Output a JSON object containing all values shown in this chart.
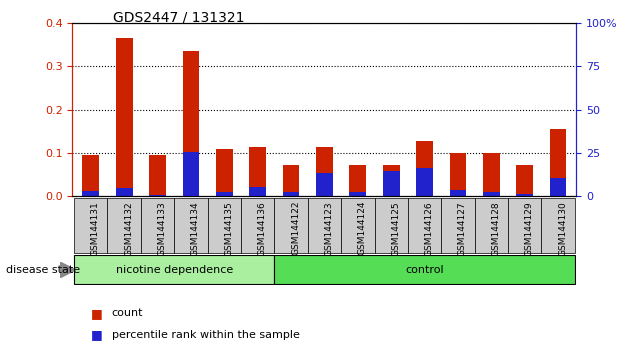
{
  "title": "GDS2447 / 131321",
  "categories": [
    "GSM144131",
    "GSM144132",
    "GSM144133",
    "GSM144134",
    "GSM144135",
    "GSM144136",
    "GSM144122",
    "GSM144123",
    "GSM144124",
    "GSM144125",
    "GSM144126",
    "GSM144127",
    "GSM144128",
    "GSM144129",
    "GSM144130"
  ],
  "count_values": [
    0.095,
    0.365,
    0.095,
    0.335,
    0.11,
    0.115,
    0.072,
    0.115,
    0.072,
    0.072,
    0.128,
    0.1,
    0.1,
    0.072,
    0.155
  ],
  "percentile_values": [
    0.012,
    0.02,
    0.003,
    0.103,
    0.01,
    0.022,
    0.01,
    0.055,
    0.01,
    0.058,
    0.065,
    0.015,
    0.01,
    0.005,
    0.042
  ],
  "bar_color_red": "#CC2200",
  "bar_color_blue": "#2222CC",
  "ylim": [
    0,
    0.4
  ],
  "yticks": [
    0,
    0.1,
    0.2,
    0.3,
    0.4
  ],
  "y2ticks": [
    0,
    25,
    50,
    75,
    100
  ],
  "y2labels": [
    "0",
    "25",
    "50",
    "75",
    "100%"
  ],
  "group1_label": "nicotine dependence",
  "group2_label": "control",
  "n_group1": 6,
  "n_group2": 9,
  "disease_state_label": "disease state",
  "legend_count": "count",
  "legend_percentile": "percentile rank within the sample",
  "group1_color": "#AAEEA0",
  "group2_color": "#55DD55",
  "tick_label_bg": "#CCCCCC",
  "left_axis_color": "#CC2200",
  "right_axis_color": "#2222CC"
}
